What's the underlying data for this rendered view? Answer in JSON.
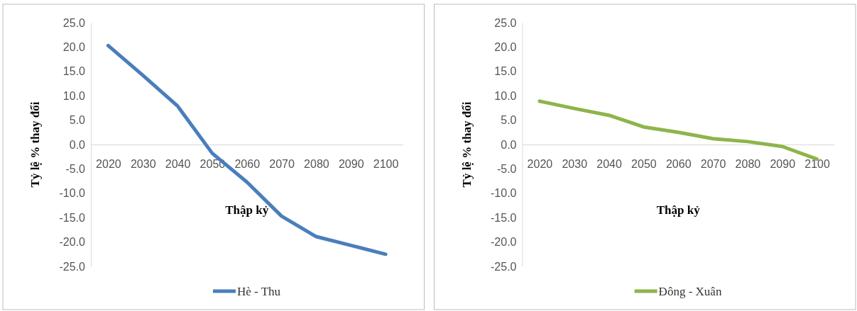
{
  "chart_data": [
    {
      "type": "line",
      "xlabel": "Thập kỷ",
      "ylabel": "Tỷ lệ % thay đổi",
      "categories": [
        "2020",
        "2030",
        "2040",
        "2050",
        "2060",
        "2070",
        "2080",
        "2090",
        "2100"
      ],
      "series": [
        {
          "name": "Hè - Thu",
          "color": "#4a7ebb",
          "values": [
            20.3,
            14.2,
            7.9,
            -1.8,
            -7.7,
            -14.7,
            -18.9,
            -20.7,
            -22.5
          ]
        }
      ],
      "ylim": [
        -25,
        25
      ],
      "yticks": [
        {
          "value": -25,
          "label": "-25.0"
        },
        {
          "value": -20,
          "label": "-20.0"
        },
        {
          "value": -15,
          "label": "-15.0"
        },
        {
          "value": -10,
          "label": "-10.0"
        },
        {
          "value": -5,
          "label": "-5.0"
        },
        {
          "value": 0,
          "label": "0.0"
        },
        {
          "value": 5,
          "label": "5.0"
        },
        {
          "value": 10,
          "label": "10.0"
        },
        {
          "value": 15,
          "label": "15.0"
        },
        {
          "value": 20,
          "label": "20.0"
        },
        {
          "value": 25,
          "label": "25.0"
        }
      ],
      "legend": "bottom",
      "marker": "none"
    },
    {
      "type": "line",
      "xlabel": "Thập kỷ",
      "ylabel": "Tỷ lệ % thay đổi",
      "categories": [
        "2020",
        "2030",
        "2040",
        "2050",
        "2060",
        "2070",
        "2080",
        "2090",
        "2100"
      ],
      "series": [
        {
          "name": "Đông - Xuân",
          "color": "#8db54a",
          "values": [
            8.9,
            7.4,
            6.0,
            3.6,
            2.5,
            1.2,
            0.6,
            -0.4,
            -3.0
          ]
        }
      ],
      "ylim": [
        -25,
        25
      ],
      "yticks": [
        {
          "value": -25,
          "label": "-25.0"
        },
        {
          "value": -20,
          "label": "-20.0"
        },
        {
          "value": -15,
          "label": "-15.0"
        },
        {
          "value": -10,
          "label": "-10.0"
        },
        {
          "value": -5,
          "label": "-5.0"
        },
        {
          "value": 0,
          "label": "0.0"
        },
        {
          "value": 5,
          "label": "5.0"
        },
        {
          "value": 10,
          "label": "10.0"
        },
        {
          "value": 15,
          "label": "15.0"
        },
        {
          "value": 20,
          "label": "20.0"
        },
        {
          "value": 25,
          "label": "25.0"
        }
      ],
      "legend": "bottom",
      "marker": "none"
    }
  ]
}
